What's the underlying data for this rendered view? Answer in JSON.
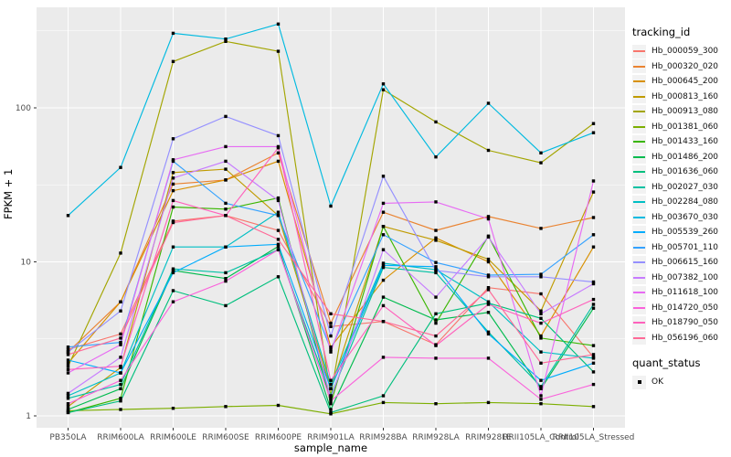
{
  "figure": {
    "panel_bg": "#EBEBEB",
    "grid_color": "#FFFFFF",
    "tick_color": "#333333",
    "tick_label_color": "#4D4D4D"
  },
  "chart_data": {
    "type": "line",
    "title": "",
    "xlabel": "sample_name",
    "ylabel": "FPKM + 1",
    "y_scale": "log10",
    "y_ticks": [
      1,
      10,
      100
    ],
    "y_minor_ticks": [
      3.1623,
      31.623,
      316.23
    ],
    "ylim": [
      0.85,
      450
    ],
    "grid": "on",
    "legend_position": "right",
    "legend_title": "tracking_id",
    "point_shape": "filled-square",
    "point_color": "#000000",
    "x_categories": [
      "PB350LA",
      "RRIM600LA",
      "RRIM600LE",
      "RRIM600SE",
      "RRIM600PE",
      "RRIM901LA",
      "RRIM928BA",
      "RRIM928LA",
      "RRIM928LE",
      "RRII105LA_Control",
      "RRII105LA_Stressed"
    ],
    "series": [
      {
        "name": "Hb_000059_300",
        "color": "#F8766D",
        "values": [
          2.7,
          3.4,
          18.4,
          20,
          16,
          3.8,
          4.1,
          2.9,
          6.8,
          6.2,
          2.4
        ]
      },
      {
        "name": "Hb_000320_020",
        "color": "#EA8331",
        "values": [
          2.6,
          5.5,
          32,
          34,
          51,
          4.0,
          21,
          16,
          19.7,
          16.5,
          19.4
        ]
      },
      {
        "name": "Hb_000645_200",
        "color": "#D89000",
        "values": [
          2.2,
          5.5,
          29,
          34,
          45,
          2.8,
          7.6,
          14.3,
          10,
          3.3,
          12.5
        ]
      },
      {
        "name": "Hb_000813_160",
        "color": "#C09B00",
        "values": [
          1.15,
          2.06,
          38,
          40,
          20,
          1.5,
          17,
          13.8,
          10.4,
          4.8,
          28.4
        ]
      },
      {
        "name": "Hb_000913_080",
        "color": "#A3A500",
        "values": [
          2.1,
          11.4,
          200,
          270,
          233,
          1.35,
          131,
          81,
          53,
          44,
          79
        ]
      },
      {
        "name": "Hb_001381_060",
        "color": "#7CAE00",
        "values": [
          1.08,
          1.1,
          1.12,
          1.15,
          1.17,
          1.03,
          1.22,
          1.2,
          1.22,
          1.2,
          1.15
        ]
      },
      {
        "name": "Hb_001433_160",
        "color": "#39B600",
        "values": [
          1.05,
          1.3,
          22.7,
          22,
          26,
          1.2,
          17,
          4.0,
          14.7,
          3.2,
          2.86
        ]
      },
      {
        "name": "Hb_001486_200",
        "color": "#00BB4E",
        "values": [
          1.1,
          1.5,
          8.8,
          7.8,
          12.6,
          1.1,
          5.9,
          4.2,
          4.7,
          1.5,
          5.0
        ]
      },
      {
        "name": "Hb_001636_060",
        "color": "#00BF7D",
        "values": [
          1.05,
          1.25,
          6.5,
          5.2,
          8,
          1.05,
          1.35,
          4.6,
          5.4,
          4.3,
          1.93
        ]
      },
      {
        "name": "Hb_002027_030",
        "color": "#00C1A3",
        "values": [
          1.3,
          1.6,
          9,
          8.5,
          12,
          1.35,
          9.2,
          8.5,
          3.5,
          1.55,
          5.3
        ]
      },
      {
        "name": "Hb_002284_080",
        "color": "#00BFC4",
        "values": [
          1.35,
          1.9,
          12.5,
          12.5,
          21,
          1.6,
          9.8,
          8.9,
          5.5,
          2.6,
          2.37
        ]
      },
      {
        "name": "Hb_003670_030",
        "color": "#00BAE0",
        "values": [
          20,
          41,
          305,
          280,
          350,
          23,
          143,
          48,
          107,
          51,
          69
        ]
      },
      {
        "name": "Hb_005539_260",
        "color": "#00ACFC",
        "values": [
          2.3,
          1.9,
          8.5,
          12.5,
          13,
          1.5,
          9.5,
          9.3,
          3.4,
          1.7,
          2.2
        ]
      },
      {
        "name": "Hb_005701_110",
        "color": "#35A2FF",
        "values": [
          2.8,
          3.0,
          45,
          24,
          20,
          2.7,
          15,
          9.9,
          8.2,
          8.3,
          15
        ]
      },
      {
        "name": "Hb_006615_160",
        "color": "#9590FF",
        "values": [
          2.6,
          4.8,
          63,
          88,
          66,
          3.3,
          36,
          8.8,
          8.0,
          8.0,
          7.4
        ]
      },
      {
        "name": "Hb_007382_100",
        "color": "#C77CFF",
        "values": [
          1.4,
          2.4,
          35,
          45,
          25,
          1.3,
          12,
          5.9,
          14.5,
          4.6,
          7.2
        ]
      },
      {
        "name": "Hb_011618_100",
        "color": "#E76BF3",
        "values": [
          1.9,
          2.9,
          46,
          56,
          56,
          2.6,
          24,
          24.5,
          19,
          1.35,
          33.5
        ]
      },
      {
        "name": "Hb_014720_050",
        "color": "#FA62DB",
        "values": [
          1.2,
          1.7,
          5.5,
          7.5,
          12,
          1.25,
          2.4,
          2.37,
          2.37,
          1.28,
          1.6
        ]
      },
      {
        "name": "Hb_018790_050",
        "color": "#FF62BC",
        "values": [
          2.0,
          2.1,
          25,
          20,
          55,
          1.7,
          5.2,
          2.86,
          5.3,
          4.0,
          5.7
        ]
      },
      {
        "name": "Hb_056196_060",
        "color": "#FF6A98",
        "values": [
          2.5,
          3.2,
          18,
          20,
          14,
          4.6,
          4.1,
          3.3,
          6.6,
          2.2,
          2.5
        ]
      }
    ],
    "shape_legend": {
      "title": "quant_status",
      "items": [
        {
          "label": "OK",
          "shape": "filled-square"
        }
      ]
    }
  }
}
